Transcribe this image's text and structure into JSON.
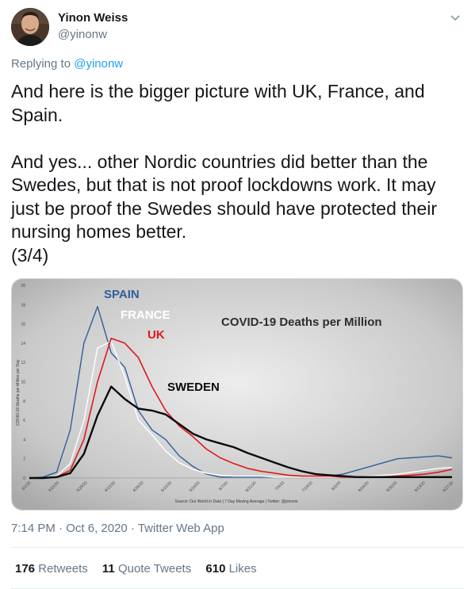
{
  "author": {
    "name": "Yinon Weiss",
    "handle": "@yinonw"
  },
  "replying": {
    "prefix": "Replying to",
    "target": "@yinonw"
  },
  "tweet": {
    "text": "And here is the bigger picture with UK, France, and\nSpain.\n\nAnd yes... other Nordic countries did better than the\nSwedes, but that is not proof lockdowns work. It may\njust be proof the Swedes should have protected their\nnursing homes better.\n(3/4)"
  },
  "meta": {
    "time": "7:14 PM",
    "separator": " · ",
    "date": "Oct 6, 2020",
    "source": "Twitter Web App"
  },
  "stats": {
    "retweets_count": "176",
    "retweets_label": "Retweets",
    "quotes_count": "11",
    "quotes_label": "Quote Tweets",
    "likes_count": "610",
    "likes_label": "Likes"
  },
  "colors": {
    "spain": "#2f5f9b",
    "france": "#ffffff",
    "uk": "#e01818",
    "sweden": "#0a0a0a",
    "link": "#1da1f2",
    "muted": "#657786"
  },
  "chart_data": {
    "type": "line",
    "title": "COVID-19 Deaths per Million",
    "ylabel": "COVID-19 Deaths per Million per Day",
    "source_note": "Source: Our World in Data | 7 Day Moving Average | Twitter: @yinonw",
    "ylim": [
      0,
      20
    ],
    "yticks": [
      "0",
      "2",
      "4",
      "6",
      "8",
      "10",
      "12",
      "14",
      "16",
      "18",
      "20"
    ],
    "x": [
      "3/1/20",
      "3/8/20",
      "3/15/20",
      "3/22/20",
      "3/29/20",
      "4/5/20",
      "4/12/20",
      "4/19/20",
      "4/26/20",
      "5/3/20",
      "5/10/20",
      "5/17/20",
      "5/24/20",
      "5/31/20",
      "6/7/20",
      "6/14/20",
      "6/21/20",
      "6/28/20",
      "7/5/20",
      "7/12/20",
      "7/19/20",
      "7/26/20",
      "8/2/20",
      "8/9/20",
      "8/16/20",
      "8/23/20",
      "8/30/20",
      "9/6/20",
      "9/13/20",
      "9/20/20",
      "9/27/20",
      "10/4/20"
    ],
    "xtick_labels": [
      "3/1/20",
      "3/15/20",
      "3/29/20",
      "4/12/20",
      "4/26/20",
      "5/10/20",
      "5/24/20",
      "6/7/20",
      "6/21/20",
      "7/5/20",
      "7/19/20",
      "8/2/20",
      "8/16/20",
      "8/30/20",
      "9/13/20",
      "9/27/20"
    ],
    "series": [
      {
        "name": "SPAIN",
        "values": [
          0,
          0.1,
          0.6,
          5,
          14,
          17.8,
          13,
          11.5,
          7,
          5,
          4,
          2.3,
          1.2,
          0.4,
          0.1,
          0.1,
          0.1,
          0.1,
          0.1,
          0.1,
          0.1,
          0.1,
          0.2,
          0.4,
          0.8,
          1.2,
          1.6,
          2,
          2.1,
          2.2,
          2.3,
          2.1
        ]
      },
      {
        "name": "FRANCE",
        "values": [
          0,
          0,
          0.2,
          1.5,
          6,
          13.5,
          14.2,
          10.5,
          6,
          4.5,
          2.8,
          1.6,
          0.9,
          0.5,
          0.3,
          0.2,
          0.2,
          0.2,
          0.1,
          0.1,
          0.1,
          0.1,
          0.1,
          0.1,
          0.1,
          0.2,
          0.3,
          0.4,
          0.6,
          0.8,
          1,
          1.1
        ]
      },
      {
        "name": "UK",
        "values": [
          0,
          0,
          0.1,
          0.8,
          4,
          10,
          14.5,
          14,
          12.5,
          9.5,
          7,
          5.4,
          4.3,
          3,
          2.1,
          1.5,
          1,
          0.7,
          0.5,
          0.3,
          0.2,
          0.2,
          0.2,
          0.1,
          0.1,
          0.1,
          0.1,
          0.2,
          0.3,
          0.4,
          0.6,
          0.9
        ]
      },
      {
        "name": "SWEDEN",
        "values": [
          0,
          0,
          0.1,
          0.5,
          2.5,
          6.5,
          9.5,
          8.2,
          7.2,
          7,
          6.6,
          5.6,
          4.6,
          4,
          3.6,
          3.2,
          2.6,
          2.1,
          1.6,
          1.1,
          0.7,
          0.4,
          0.3,
          0.2,
          0.1,
          0.1,
          0.1,
          0.1,
          0.1,
          0.1,
          0.1,
          0.1
        ]
      }
    ]
  }
}
